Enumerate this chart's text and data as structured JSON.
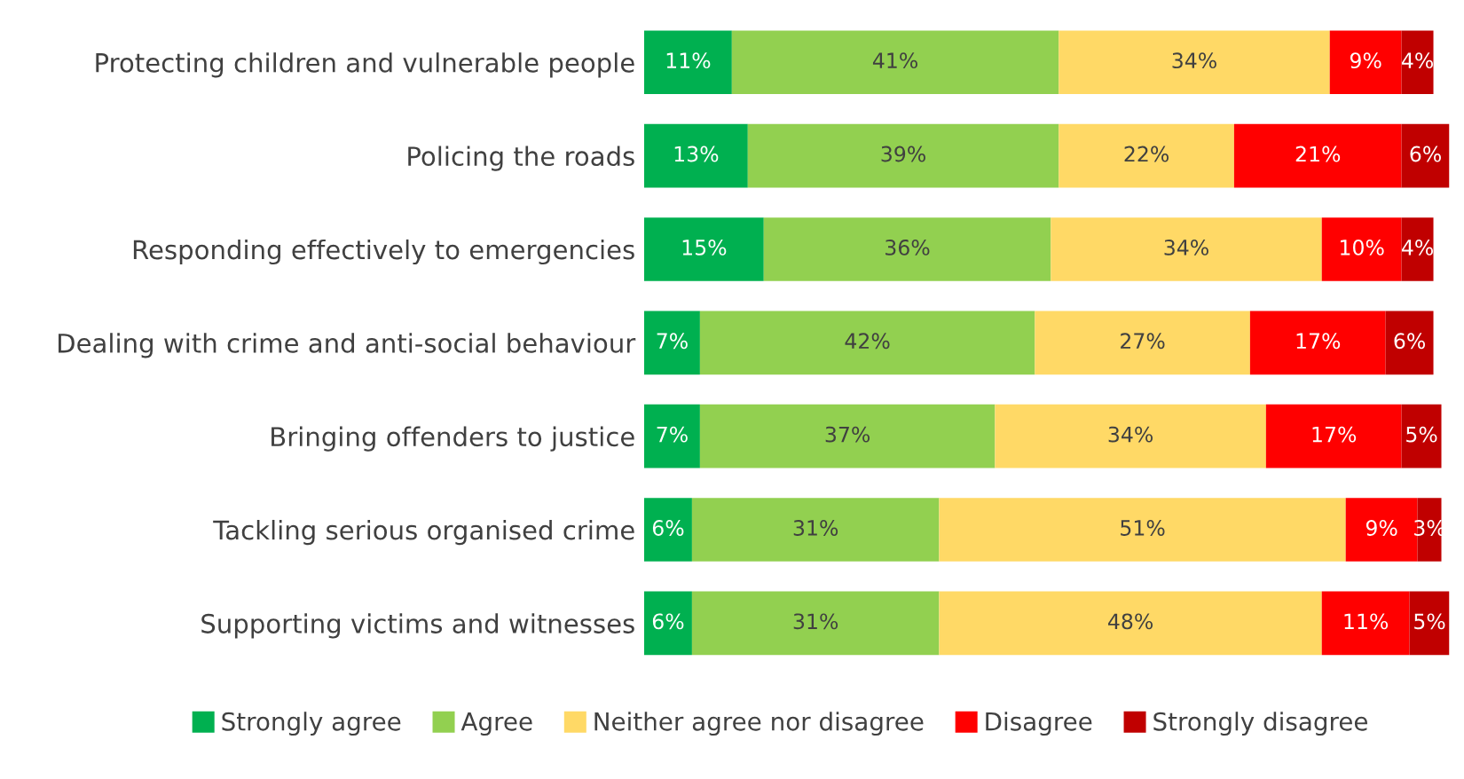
{
  "chart_data": {
    "type": "bar",
    "orientation": "horizontal",
    "stacked": true,
    "legend": "bottom",
    "tick_labels": "y",
    "categories": [
      "Protecting children and vulnerable people",
      "Policing the roads",
      "Responding effectively to emergencies",
      "Dealing with crime and anti-social behaviour",
      "Bringing offenders to justice",
      "Tackling serious organised crime",
      "Supporting victims and witnesses"
    ],
    "series": [
      {
        "name": "Strongly agree",
        "color": "#00b050",
        "values": [
          11,
          13,
          15,
          7,
          7,
          6,
          6
        ],
        "value_labels": [
          "11%",
          "13%",
          "15%",
          "7%",
          "7%",
          "6%",
          "6%"
        ]
      },
      {
        "name": "Agree",
        "color": "#92d050",
        "values": [
          41,
          39,
          36,
          42,
          37,
          31,
          31
        ],
        "value_labels": [
          "41%",
          "39%",
          "36%",
          "42%",
          "37%",
          "31%",
          "31%"
        ]
      },
      {
        "name": "Neither agree nor disagree",
        "color": "#ffd966",
        "values": [
          34,
          22,
          34,
          27,
          34,
          51,
          48
        ],
        "value_labels": [
          "34%",
          "22%",
          "34%",
          "27%",
          "34%",
          "51%",
          "48%"
        ]
      },
      {
        "name": "Disagree",
        "color": "#ff0000",
        "values": [
          9,
          21,
          10,
          17,
          17,
          9,
          11
        ],
        "value_labels": [
          "9%",
          "21%",
          "10%",
          "17%",
          "17%",
          "9%",
          "11%"
        ]
      },
      {
        "name": "Strongly disagree",
        "color": "#c00000",
        "values": [
          4,
          6,
          4,
          6,
          5,
          3,
          5
        ],
        "value_labels": [
          "4%",
          "6%",
          "4%",
          "6%",
          "5%",
          "3%",
          "5%"
        ]
      }
    ]
  }
}
